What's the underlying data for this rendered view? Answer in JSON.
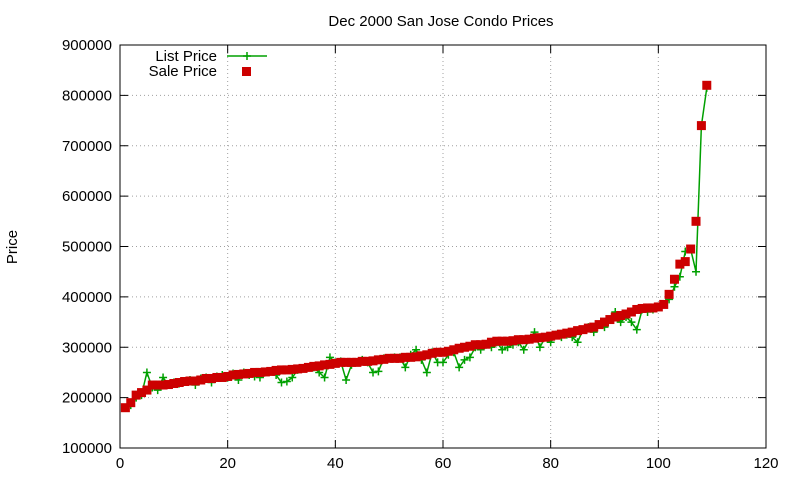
{
  "chart_data": {
    "type": "line",
    "title": "Dec 2000 San Jose Condo Prices",
    "xlabel": "",
    "ylabel": "Price",
    "xlim": [
      0,
      120
    ],
    "ylim": [
      100000,
      900000
    ],
    "xticks": [
      0,
      20,
      40,
      60,
      80,
      100,
      120
    ],
    "yticks": [
      100000,
      200000,
      300000,
      400000,
      500000,
      600000,
      700000,
      800000,
      900000
    ],
    "grid": true,
    "legend_position": "top-left",
    "series": [
      {
        "name": "List Price",
        "color": "#00a000",
        "marker": "plus",
        "line": true,
        "x": [
          1,
          2,
          3,
          4,
          5,
          6,
          7,
          8,
          9,
          10,
          11,
          12,
          13,
          14,
          15,
          16,
          17,
          18,
          19,
          20,
          21,
          22,
          23,
          24,
          25,
          26,
          27,
          28,
          29,
          30,
          31,
          32,
          33,
          34,
          35,
          36,
          37,
          38,
          39,
          40,
          41,
          42,
          43,
          44,
          45,
          46,
          47,
          48,
          49,
          50,
          51,
          52,
          53,
          54,
          55,
          56,
          57,
          58,
          59,
          60,
          61,
          62,
          63,
          64,
          65,
          66,
          67,
          68,
          69,
          70,
          71,
          72,
          73,
          74,
          75,
          76,
          77,
          78,
          79,
          80,
          81,
          82,
          83,
          84,
          85,
          86,
          87,
          88,
          89,
          90,
          91,
          92,
          93,
          94,
          95,
          96,
          97,
          98,
          99,
          100,
          101,
          102,
          103,
          104,
          105,
          106,
          107,
          108,
          109
        ],
        "values": [
          180000,
          185000,
          200000,
          205000,
          250000,
          220000,
          215000,
          240000,
          225000,
          230000,
          228000,
          232000,
          235000,
          225000,
          238000,
          240000,
          230000,
          242000,
          245000,
          240000,
          248000,
          235000,
          250000,
          245000,
          242000,
          240000,
          250000,
          252000,
          245000,
          230000,
          232000,
          240000,
          255000,
          258000,
          260000,
          260000,
          250000,
          240000,
          280000,
          270000,
          272000,
          235000,
          265000,
          270000,
          275000,
          270000,
          250000,
          252000,
          278000,
          278000,
          280000,
          280000,
          260000,
          285000,
          295000,
          275000,
          250000,
          290000,
          270000,
          270000,
          285000,
          290000,
          260000,
          275000,
          280000,
          300000,
          295000,
          305000,
          300000,
          310000,
          295000,
          300000,
          305000,
          310000,
          295000,
          315000,
          330000,
          300000,
          320000,
          310000,
          325000,
          320000,
          325000,
          320000,
          310000,
          335000,
          340000,
          330000,
          345000,
          340000,
          355000,
          370000,
          350000,
          360000,
          350000,
          335000,
          375000,
          370000,
          375000,
          380000,
          385000,
          395000,
          420000,
          440000,
          490000,
          495000,
          450000,
          740000,
          815000
        ]
      },
      {
        "name": "Sale Price",
        "color": "#cc0000",
        "marker": "square",
        "line": false,
        "x": [
          1,
          2,
          3,
          4,
          5,
          6,
          7,
          8,
          9,
          10,
          11,
          12,
          13,
          14,
          15,
          16,
          17,
          18,
          19,
          20,
          21,
          22,
          23,
          24,
          25,
          26,
          27,
          28,
          29,
          30,
          31,
          32,
          33,
          34,
          35,
          36,
          37,
          38,
          39,
          40,
          41,
          42,
          43,
          44,
          45,
          46,
          47,
          48,
          49,
          50,
          51,
          52,
          53,
          54,
          55,
          56,
          57,
          58,
          59,
          60,
          61,
          62,
          63,
          64,
          65,
          66,
          67,
          68,
          69,
          70,
          71,
          72,
          73,
          74,
          75,
          76,
          77,
          78,
          79,
          80,
          81,
          82,
          83,
          84,
          85,
          86,
          87,
          88,
          89,
          90,
          91,
          92,
          93,
          94,
          95,
          96,
          97,
          98,
          99,
          100,
          101,
          102,
          103,
          104,
          105,
          106,
          107,
          108,
          109
        ],
        "values": [
          180000,
          190000,
          205000,
          210000,
          215000,
          225000,
          225000,
          225000,
          226000,
          228000,
          230000,
          232000,
          233000,
          233000,
          235000,
          238000,
          238000,
          240000,
          240000,
          242000,
          245000,
          246000,
          247000,
          248000,
          250000,
          250000,
          251000,
          252000,
          254000,
          255000,
          255000,
          256000,
          257000,
          258000,
          260000,
          262000,
          263000,
          265000,
          266000,
          268000,
          270000,
          270000,
          270000,
          270000,
          272000,
          272000,
          273000,
          275000,
          276000,
          278000,
          278000,
          278000,
          280000,
          280000,
          281000,
          283000,
          285000,
          288000,
          290000,
          290000,
          292000,
          295000,
          298000,
          300000,
          302000,
          305000,
          305000,
          306000,
          310000,
          312000,
          312000,
          312000,
          313000,
          315000,
          315000,
          316000,
          318000,
          319000,
          320000,
          322000,
          324000,
          326000,
          328000,
          330000,
          333000,
          335000,
          338000,
          340000,
          345000,
          350000,
          355000,
          360000,
          363000,
          366000,
          370000,
          375000,
          377000,
          378000,
          378000,
          380000,
          385000,
          405000,
          435000,
          465000,
          470000,
          495000,
          550000,
          740000,
          820000
        ]
      }
    ]
  }
}
